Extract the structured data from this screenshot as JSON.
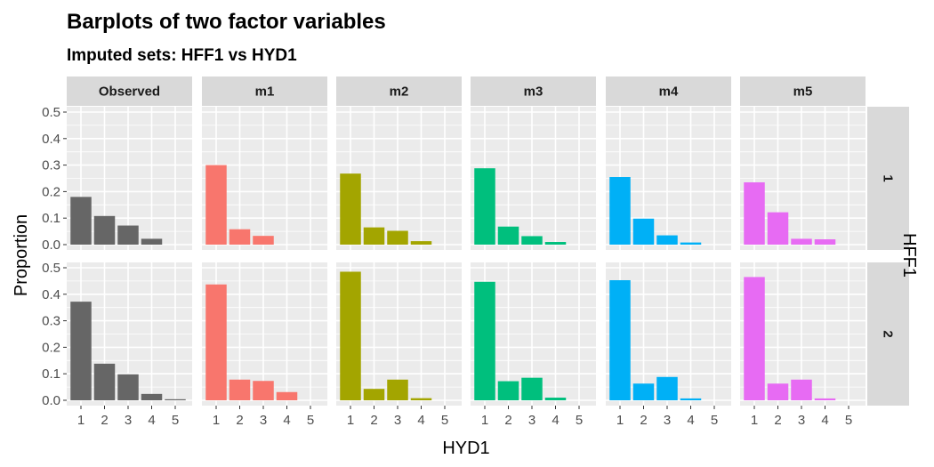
{
  "chart_data": {
    "type": "bar",
    "title": "Barplots of two factor variables",
    "subtitle": "Imputed sets:  HFF1 vs HYD1",
    "xlabel": "HYD1",
    "ylabel": "Proportion",
    "row_facet_label": "HFF1",
    "categories": [
      "1",
      "2",
      "3",
      "4",
      "5"
    ],
    "ylim": [
      0,
      0.5
    ],
    "yticks": [
      0.0,
      0.1,
      0.2,
      0.3,
      0.4,
      0.5
    ],
    "ytick_labels": [
      "0.0",
      "0.1",
      "0.2",
      "0.3",
      "0.4",
      "0.5"
    ],
    "grid": true,
    "rows": [
      "1",
      "2"
    ],
    "panels": [
      {
        "name": "Observed",
        "color": "#666666",
        "values": {
          "1": [
            0.18,
            0.108,
            0.072,
            0.022,
            0
          ],
          "2": [
            0.372,
            0.138,
            0.098,
            0.024,
            0.004
          ]
        }
      },
      {
        "name": "m1",
        "color": "#F8766D",
        "values": {
          "1": [
            0.3,
            0.058,
            0.033,
            0,
            0
          ],
          "2": [
            0.437,
            0.078,
            0.073,
            0.031,
            0
          ]
        }
      },
      {
        "name": "m2",
        "color": "#A3A500",
        "values": {
          "1": [
            0.268,
            0.065,
            0.052,
            0.013,
            0
          ],
          "2": [
            0.485,
            0.043,
            0.078,
            0.008,
            0
          ]
        }
      },
      {
        "name": "m3",
        "color": "#00BF7D",
        "values": {
          "1": [
            0.288,
            0.068,
            0.032,
            0.01,
            0
          ],
          "2": [
            0.447,
            0.072,
            0.085,
            0.01,
            0
          ]
        }
      },
      {
        "name": "m4",
        "color": "#00B0F6",
        "values": {
          "1": [
            0.255,
            0.098,
            0.035,
            0.008,
            0
          ],
          "2": [
            0.453,
            0.063,
            0.088,
            0.007,
            0
          ]
        }
      },
      {
        "name": "m5",
        "color": "#E76BF3",
        "values": {
          "1": [
            0.235,
            0.122,
            0.022,
            0.02,
            0
          ],
          "2": [
            0.465,
            0.063,
            0.078,
            0.007,
            0
          ]
        }
      }
    ]
  }
}
